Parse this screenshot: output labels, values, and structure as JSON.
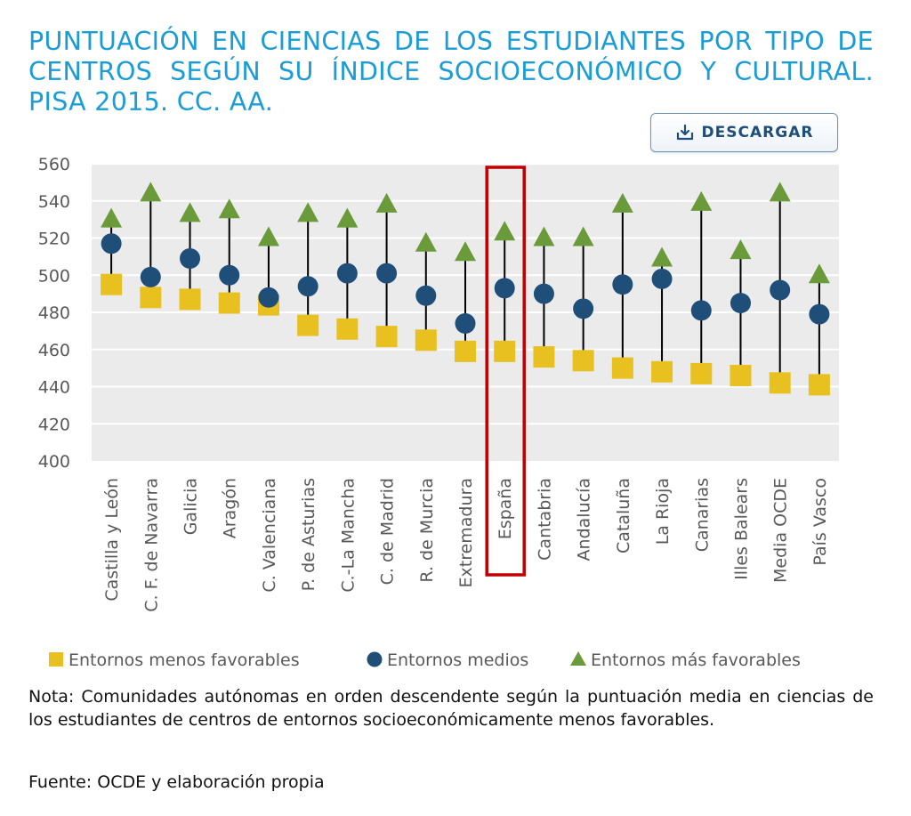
{
  "title": "PUNTUACIÓN EN CIENCIAS DE LOS ESTUDIANTES POR TIPO DE CENTROS SEGÚN SU ÍNDICE SOCIOECONÓMICO Y CULTURAL. PISA 2015. CC. AA.",
  "download_label": "DESCARGAR",
  "note": "Nota: Comunidades autónomas en orden descendente según la puntuación media en ciencias de los estudiantes de centros de entornos socioeconómicamente menos favorables.",
  "source": "Fuente: OCDE y elaboración propia",
  "colors": {
    "title": "#1a9cd7",
    "low": "#e8c020",
    "mid": "#1f4e79",
    "high": "#6a9a3a",
    "plot_bg": "#ebebeb",
    "gridline": "#ffffff",
    "whisker": "#000000",
    "highlight": "#c00000"
  },
  "chart_data": {
    "type": "scatter",
    "title": "PUNTUACIÓN EN CIENCIAS DE LOS ESTUDIANTES POR TIPO DE CENTROS SEGÚN SU ÍNDICE SOCIOECONÓMICO Y CULTURAL. PISA 2015. CC. AA.",
    "ylim": [
      400,
      560
    ],
    "yticks": [
      400,
      420,
      440,
      460,
      480,
      500,
      520,
      540,
      560
    ],
    "grid": true,
    "legend_position": "bottom",
    "highlight_category": "España",
    "categories": [
      "Castilla y León",
      "C. F. de Navarra",
      "Galicia",
      "Aragón",
      "C. Valenciana",
      "P. de Asturias",
      "C.-La Mancha",
      "C. de Madrid",
      "R. de Murcia",
      "Extremadura",
      "España",
      "Cantabria",
      "Andalucía",
      "Cataluña",
      "La Rioja",
      "Canarias",
      "Illes Balears",
      "Media OCDE",
      "País Vasco"
    ],
    "series": [
      {
        "name": "Entornos menos favorables",
        "marker": "square",
        "color": "#e8c020",
        "values": [
          495,
          488,
          487,
          485,
          484,
          473,
          471,
          467,
          465,
          459,
          459,
          456,
          454,
          450,
          448,
          447,
          446,
          442,
          441
        ]
      },
      {
        "name": "Entornos medios",
        "marker": "circle",
        "color": "#1f4e79",
        "values": [
          517,
          499,
          509,
          500,
          488,
          494,
          501,
          501,
          489,
          474,
          493,
          490,
          482,
          495,
          498,
          481,
          485,
          492,
          479
        ]
      },
      {
        "name": "Entornos más favorables",
        "marker": "triangle",
        "color": "#6a9a3a",
        "values": [
          530,
          544,
          533,
          535,
          520,
          533,
          530,
          538,
          517,
          512,
          523,
          520,
          520,
          538,
          509,
          539,
          513,
          544,
          500
        ]
      }
    ]
  }
}
